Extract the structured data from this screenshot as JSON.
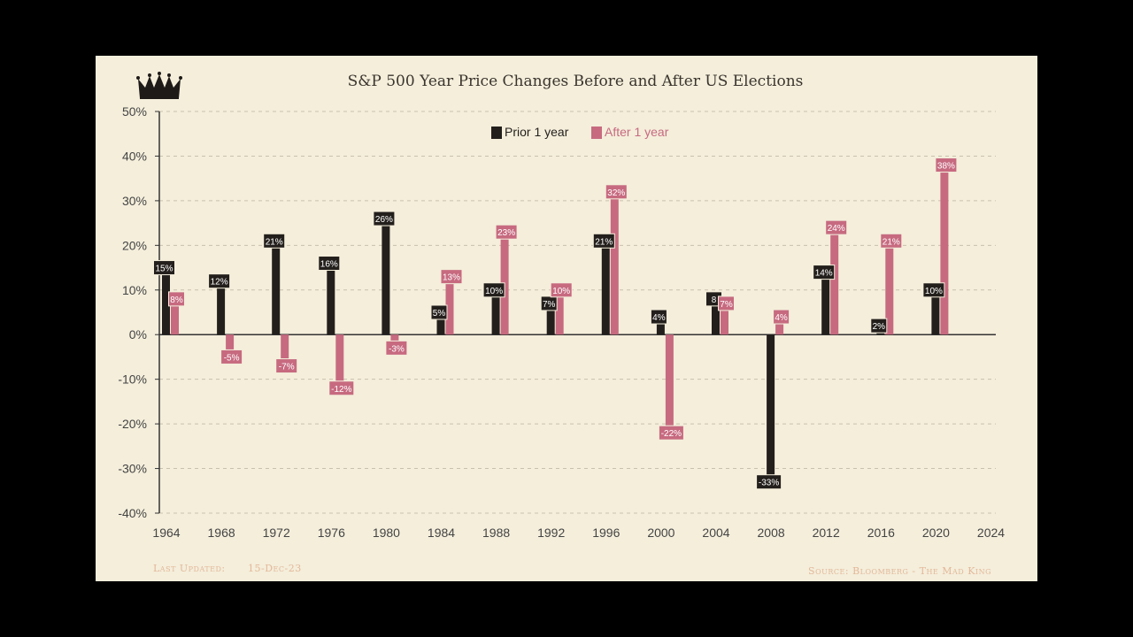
{
  "chart_data": {
    "type": "bar",
    "title": "S&P 500 Year Price Changes Before and After US Elections",
    "categories": [
      "1964",
      "1968",
      "1972",
      "1976",
      "1980",
      "1984",
      "1988",
      "1992",
      "1996",
      "2000",
      "2004",
      "2008",
      "2012",
      "2016",
      "2020",
      "2024"
    ],
    "series": [
      {
        "name": "Prior 1 year",
        "color": "#231f1c",
        "values": [
          15,
          12,
          21,
          16,
          26,
          5,
          10,
          7,
          21,
          4,
          8,
          -33,
          14,
          2,
          10,
          null
        ],
        "labels": [
          "15%",
          "12%",
          "21%",
          "16%",
          "26%",
          "5%",
          "10%",
          "7%",
          "21%",
          "4%",
          "8",
          "-33%",
          "14%",
          "2%",
          "10%",
          ""
        ]
      },
      {
        "name": "After 1 year",
        "color": "#c76a80",
        "values": [
          8,
          -5,
          -7,
          -12,
          -3,
          13,
          23,
          10,
          32,
          -22,
          7,
          4,
          24,
          21,
          38,
          null
        ],
        "labels": [
          "8%",
          "-5%",
          "-7%",
          "-12%",
          "-3%",
          "13%",
          "23%",
          "10%",
          "32%",
          "-22%",
          "7%",
          "4%",
          "24%",
          "21%",
          "38%",
          ""
        ]
      }
    ],
    "ylim": [
      -40,
      50
    ],
    "yticks": [
      -40,
      -30,
      -20,
      -10,
      0,
      10,
      20,
      30,
      40,
      50
    ],
    "ytick_labels": [
      "-40%",
      "-30%",
      "-20%",
      "-10%",
      "0%",
      "10%",
      "20%",
      "30%",
      "40%",
      "50%"
    ],
    "grid": true,
    "legend_position": "top-center",
    "xlabel": "",
    "ylabel": ""
  },
  "footer": {
    "updated_label": "Last Updated:",
    "updated_date": "15-Dec-23",
    "source": "Source: Bloomberg - The Mad King"
  },
  "logo_icon": "crown-icon"
}
